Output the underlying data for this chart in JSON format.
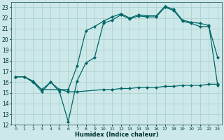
{
  "xlabel": "Humidex (Indice chaleur)",
  "background_color": "#cce8e8",
  "grid_color": "#aacccc",
  "line_color": "#006666",
  "xlim": [
    -0.5,
    23.5
  ],
  "ylim": [
    12,
    23.5
  ],
  "xticks": [
    0,
    1,
    2,
    3,
    4,
    5,
    6,
    7,
    8,
    9,
    10,
    11,
    12,
    13,
    14,
    15,
    16,
    17,
    18,
    19,
    20,
    21,
    22,
    23
  ],
  "yticks": [
    12,
    13,
    14,
    15,
    16,
    17,
    18,
    19,
    20,
    21,
    22,
    23
  ],
  "line1_x": [
    0,
    1,
    2,
    3,
    4,
    5,
    6,
    7,
    8,
    9,
    10,
    11,
    12,
    13,
    14,
    15,
    16,
    17,
    18,
    19,
    20,
    21,
    22,
    23
  ],
  "line1_y": [
    16.5,
    16.5,
    16.0,
    15.1,
    16.0,
    15.1,
    12.3,
    16.1,
    17.8,
    18.3,
    21.5,
    21.8,
    22.3,
    21.9,
    22.2,
    22.1,
    22.1,
    23.0,
    22.7,
    21.7,
    21.5,
    21.2,
    21.2,
    18.3
  ],
  "line2_x": [
    0,
    1,
    2,
    3,
    6,
    7,
    8,
    9,
    10,
    11,
    12,
    13,
    14,
    15,
    16,
    17,
    18,
    19,
    20,
    21,
    22,
    23
  ],
  "line2_y": [
    16.5,
    16.5,
    16.0,
    15.3,
    15.3,
    17.5,
    20.8,
    21.2,
    21.7,
    22.1,
    22.4,
    22.0,
    22.3,
    22.2,
    22.2,
    23.1,
    22.8,
    21.8,
    21.6,
    21.5,
    21.3,
    15.7
  ],
  "line3_x": [
    0,
    1,
    2,
    3,
    4,
    5,
    6,
    7,
    10,
    11,
    12,
    13,
    14,
    15,
    16,
    17,
    18,
    19,
    20,
    21,
    22,
    23
  ],
  "line3_y": [
    16.5,
    16.5,
    16.1,
    15.3,
    16.0,
    15.3,
    15.1,
    15.1,
    15.3,
    15.3,
    15.4,
    15.4,
    15.5,
    15.5,
    15.5,
    15.6,
    15.6,
    15.7,
    15.7,
    15.7,
    15.8,
    15.8
  ]
}
